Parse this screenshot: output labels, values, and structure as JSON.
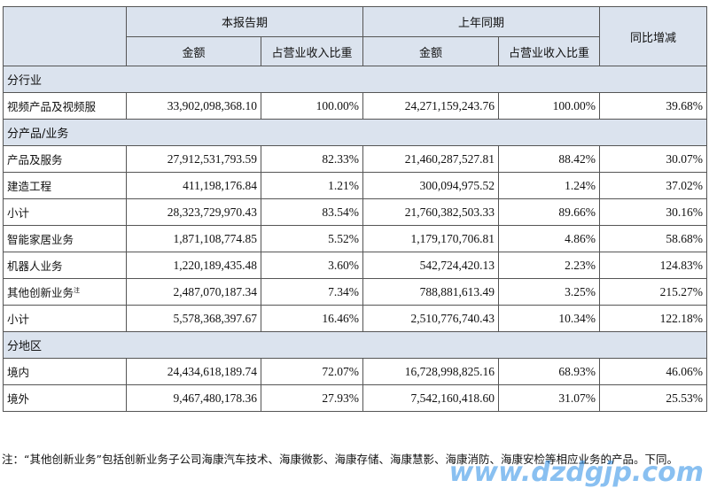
{
  "header": {
    "current_period": "本报告期",
    "prior_period": "上年同期",
    "yoy_change": "同比增减",
    "amount": "金额",
    "revenue_share": "占营业收入比重"
  },
  "sections": [
    {
      "title": "分行业",
      "rows": [
        {
          "label": "视频产品及视频服",
          "note": "",
          "cur_amount": "33,902,098,368.10",
          "cur_share": "100.00%",
          "prior_amount": "24,271,159,243.76",
          "prior_share": "100.00%",
          "change": "39.68%"
        }
      ]
    },
    {
      "title": "分产品/业务",
      "rows": [
        {
          "label": "产品及服务",
          "note": "",
          "cur_amount": "27,912,531,793.59",
          "cur_share": "82.33%",
          "prior_amount": "21,460,287,527.81",
          "prior_share": "88.42%",
          "change": "30.07%"
        },
        {
          "label": "建造工程",
          "note": "",
          "cur_amount": "411,198,176.84",
          "cur_share": "1.21%",
          "prior_amount": "300,094,975.52",
          "prior_share": "1.24%",
          "change": "37.02%"
        },
        {
          "label": "小计",
          "note": "",
          "cur_amount": "28,323,729,970.43",
          "cur_share": "83.54%",
          "prior_amount": "21,760,382,503.33",
          "prior_share": "89.66%",
          "change": "30.16%"
        },
        {
          "label": "智能家居业务",
          "note": "",
          "cur_amount": "1,871,108,774.85",
          "cur_share": "5.52%",
          "prior_amount": "1,179,170,706.81",
          "prior_share": "4.86%",
          "change": "58.68%"
        },
        {
          "label": "机器人业务",
          "note": "",
          "cur_amount": "1,220,189,435.48",
          "cur_share": "3.60%",
          "prior_amount": "542,724,420.13",
          "prior_share": "2.23%",
          "change": "124.83%"
        },
        {
          "label": "其他创新业务",
          "note": "注",
          "cur_amount": "2,487,070,187.34",
          "cur_share": "7.34%",
          "prior_amount": "788,881,613.49",
          "prior_share": "3.25%",
          "change": "215.27%"
        },
        {
          "label": "小计",
          "note": "",
          "cur_amount": "5,578,368,397.67",
          "cur_share": "16.46%",
          "prior_amount": "2,510,776,740.43",
          "prior_share": "10.34%",
          "change": "122.18%"
        }
      ]
    },
    {
      "title": "分地区",
      "rows": [
        {
          "label": "境内",
          "note": "",
          "cur_amount": "24,434,618,189.74",
          "cur_share": "72.07%",
          "prior_amount": "16,728,998,825.16",
          "prior_share": "68.93%",
          "change": "46.06%"
        },
        {
          "label": "境外",
          "note": "",
          "cur_amount": "9,467,480,178.36",
          "cur_share": "27.93%",
          "prior_amount": "7,542,160,418.60",
          "prior_share": "31.07%",
          "change": "25.53%"
        }
      ]
    }
  ],
  "footnote": "注：“其他创新业务”包括创新业务子公司海康汽车技术、海康微影、海康存储、海康慧影、海康消防、海康安检等相应业务的产品。下同。",
  "watermark": "www.dzdgjp.com",
  "colors": {
    "header_bg": "#dbe3ee",
    "border": "#555555",
    "watermark": "#288ce6"
  }
}
